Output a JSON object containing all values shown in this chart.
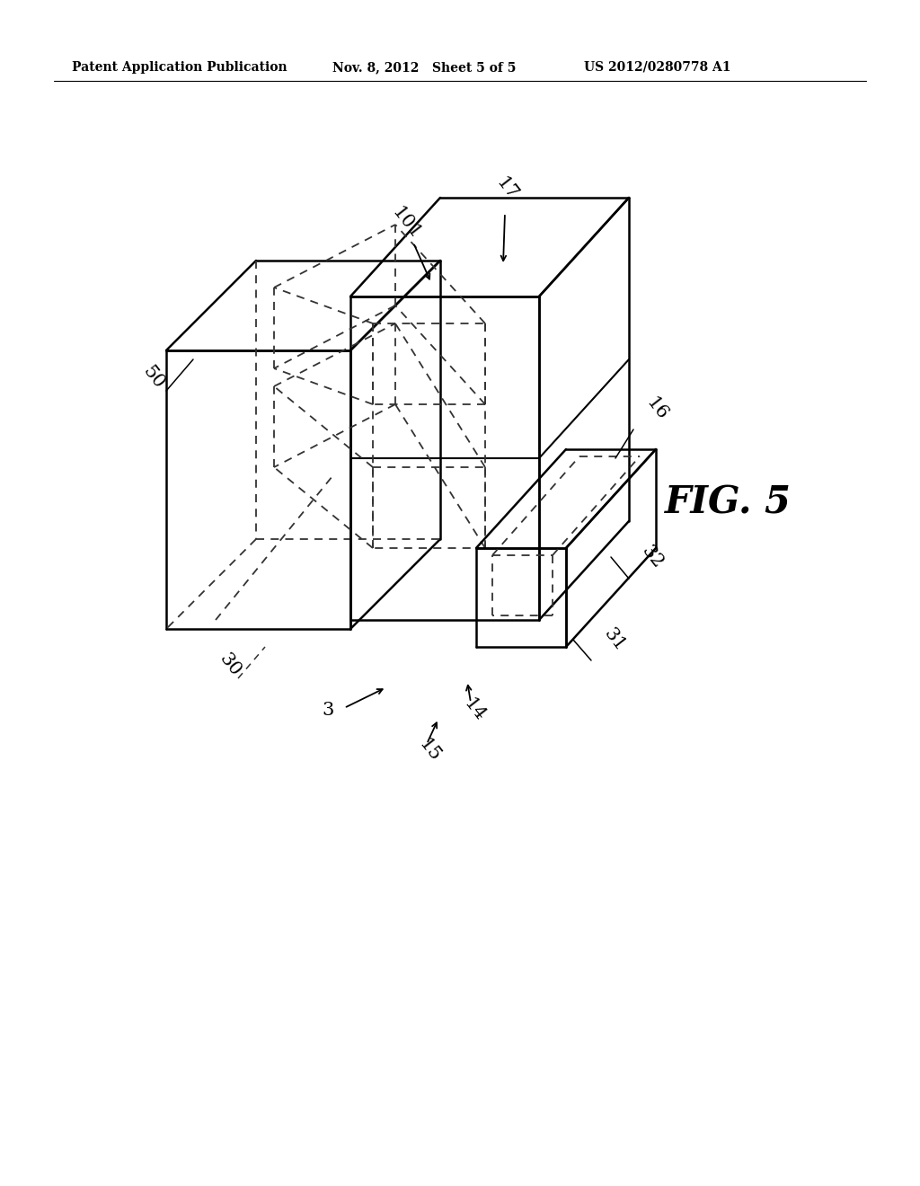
{
  "background_color": "#ffffff",
  "line_color": "#000000",
  "dashed_color": "#555555",
  "header_left": "Patent Application Publication",
  "header_center": "Nov. 8, 2012   Sheet 5 of 5",
  "header_right": "US 2012/0280778 A1",
  "fig_label": "FIG. 5"
}
